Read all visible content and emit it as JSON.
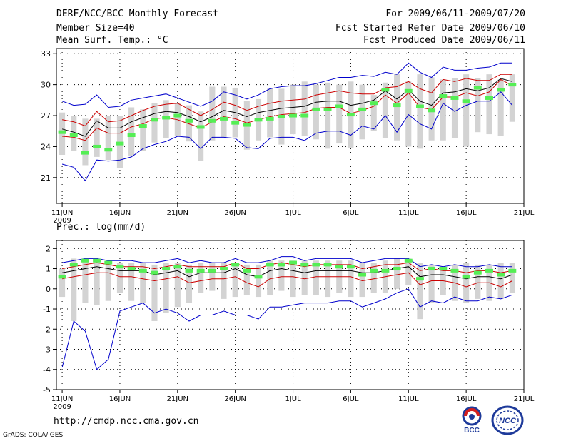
{
  "header": {
    "title": "DERF/NCC/BCC Monthly Forecast",
    "member_size": "Member Size=40",
    "variable_top": "Mean Surf. Temp.: °C",
    "period": "For 2009/06/11-2009/07/20",
    "fcst_started": "Fcst Started Refer Date 2009/06/10",
    "fcst_produced": "Fcst Produced Date 2009/06/11"
  },
  "footer": {
    "url": "http://cmdp.ncc.cma.gov.cn",
    "grads": "GrADS: COLA/IGES",
    "logo_left_text": "BCC",
    "logo_right_text": "NCC"
  },
  "colors": {
    "envelope": "#0000cc",
    "spread": "#cc0000",
    "mean": "#000000",
    "box": "#d3d3d3",
    "median": "#55ee55"
  },
  "chart_data": [
    {
      "type": "box-and-line ensemble",
      "title": "Mean Surf. Temp.: °C",
      "x": [
        1,
        2,
        3,
        4,
        5,
        6,
        7,
        8,
        9,
        10,
        11,
        12,
        13,
        14,
        15,
        16,
        17,
        18,
        19,
        20,
        21,
        22,
        23,
        24,
        25,
        26,
        27,
        28,
        29,
        30,
        31,
        32,
        33,
        34,
        35,
        36,
        37,
        38,
        39,
        40
      ],
      "xticks": [
        {
          "day": 1,
          "label": "11JUN",
          "sub": "2009"
        },
        {
          "day": 6,
          "label": "16JUN"
        },
        {
          "day": 11,
          "label": "21JUN"
        },
        {
          "day": 16,
          "label": "26JUN"
        },
        {
          "day": 21,
          "label": "1JUL"
        },
        {
          "day": 26,
          "label": "6JUL"
        },
        {
          "day": 31,
          "label": "11JUL"
        },
        {
          "day": 36,
          "label": "16JUL"
        },
        {
          "day": 41,
          "label": "21JUL"
        }
      ],
      "xlim": [
        0.5,
        41
      ],
      "ylim": [
        18.5,
        33.5
      ],
      "yticks": [
        21,
        24,
        27,
        30,
        33
      ],
      "series": [
        {
          "name": "max",
          "color": "#0000cc",
          "values": [
            28.4,
            28.0,
            28.1,
            29.0,
            27.8,
            27.9,
            28.5,
            28.7,
            28.9,
            29.1,
            28.7,
            28.3,
            27.9,
            28.4,
            29.3,
            29.0,
            28.6,
            29.0,
            29.6,
            29.8,
            29.9,
            29.9,
            30.1,
            30.4,
            30.7,
            30.7,
            30.9,
            30.8,
            31.2,
            31.0,
            32.1,
            31.2,
            30.7,
            31.7,
            31.4,
            31.4,
            31.6,
            31.7,
            32.1,
            32.1
          ]
        },
        {
          "name": "upper",
          "color": "#cc0000",
          "values": [
            26.6,
            26.4,
            26.0,
            27.4,
            26.4,
            26.5,
            27.0,
            27.5,
            27.9,
            28.1,
            28.2,
            27.6,
            27.0,
            27.6,
            28.3,
            28.0,
            27.5,
            27.9,
            28.2,
            28.4,
            28.5,
            28.6,
            29.0,
            29.2,
            29.4,
            29.2,
            29.1,
            29.1,
            29.7,
            29.8,
            30.3,
            29.6,
            29.2,
            30.5,
            30.3,
            30.6,
            30.4,
            30.4,
            31.0,
            31.0
          ]
        },
        {
          "name": "mean",
          "color": "#000000",
          "values": [
            25.7,
            25.4,
            25.0,
            26.5,
            25.8,
            25.8,
            26.4,
            26.8,
            27.2,
            27.4,
            27.3,
            26.9,
            26.4,
            26.9,
            27.5,
            27.3,
            26.9,
            27.3,
            27.5,
            27.7,
            27.8,
            27.9,
            28.3,
            28.4,
            28.4,
            28.0,
            28.2,
            28.5,
            29.4,
            28.6,
            29.5,
            28.4,
            28.0,
            29.2,
            29.3,
            29.6,
            29.4,
            29.7,
            30.6,
            30.3
          ]
        },
        {
          "name": "lower",
          "color": "#cc0000",
          "values": [
            25.0,
            24.9,
            24.6,
            25.8,
            25.3,
            25.3,
            25.9,
            26.2,
            26.7,
            26.8,
            26.6,
            26.2,
            25.8,
            26.4,
            26.9,
            26.7,
            26.3,
            26.6,
            26.9,
            27.1,
            27.2,
            27.3,
            27.7,
            27.8,
            27.8,
            27.2,
            27.5,
            27.9,
            29.0,
            28.2,
            29.2,
            27.8,
            27.6,
            28.8,
            28.8,
            29.2,
            28.9,
            29.3,
            30.5,
            29.9
          ]
        },
        {
          "name": "min",
          "color": "#0000cc",
          "values": [
            22.3,
            22.0,
            20.7,
            22.7,
            22.6,
            22.7,
            23.0,
            23.8,
            24.2,
            24.5,
            25.0,
            24.9,
            23.8,
            24.9,
            24.9,
            24.8,
            23.9,
            23.8,
            24.8,
            24.9,
            24.9,
            24.6,
            25.3,
            25.5,
            25.5,
            25.1,
            26.0,
            25.7,
            27.0,
            25.4,
            27.1,
            26.2,
            25.7,
            28.2,
            27.4,
            28.0,
            28.4,
            28.4,
            29.3,
            28.0
          ]
        }
      ],
      "boxes": {
        "low": [
          23.2,
          23.6,
          22.2,
          23.0,
          22.7,
          21.9,
          23.1,
          23.6,
          24.4,
          24.8,
          25.0,
          24.5,
          22.6,
          24.6,
          24.9,
          24.9,
          23.7,
          24.6,
          24.9,
          24.2,
          25.2,
          25.0,
          24.7,
          23.8,
          24.3,
          23.9,
          24.7,
          25.5,
          24.8,
          24.6,
          24.0,
          23.8,
          24.6,
          24.6,
          24.8,
          24.0,
          25.4,
          25.2,
          25.0,
          26.4
        ],
        "high": [
          27.3,
          27.0,
          26.7,
          26.7,
          27.0,
          27.0,
          27.8,
          27.6,
          28.2,
          28.5,
          28.2,
          28.0,
          27.4,
          29.8,
          29.8,
          29.7,
          28.4,
          28.6,
          29.6,
          29.6,
          30.0,
          30.3,
          30.0,
          30.2,
          30.0,
          30.3,
          30.0,
          29.0,
          30.2,
          31.0,
          30.3,
          31.0,
          30.7,
          30.5,
          30.6,
          31.0,
          30.6,
          31.0,
          30.5,
          31.0
        ],
        "median": [
          25.4,
          25.1,
          23.4,
          24.0,
          23.7,
          24.3,
          25.1,
          26.0,
          26.6,
          26.8,
          27.0,
          26.5,
          25.9,
          26.5,
          26.7,
          26.3,
          26.1,
          26.6,
          26.7,
          26.9,
          27.0,
          27.0,
          27.6,
          27.6,
          27.9,
          27.1,
          27.6,
          28.2,
          29.5,
          28.0,
          29.4,
          27.9,
          27.5,
          28.9,
          28.7,
          28.4,
          29.7,
          28.7,
          29.5,
          30.0
        ]
      }
    },
    {
      "type": "box-and-line ensemble",
      "title": "Prec.: log(mm/d)",
      "x": [
        1,
        2,
        3,
        4,
        5,
        6,
        7,
        8,
        9,
        10,
        11,
        12,
        13,
        14,
        15,
        16,
        17,
        18,
        19,
        20,
        21,
        22,
        23,
        24,
        25,
        26,
        27,
        28,
        29,
        30,
        31,
        32,
        33,
        34,
        35,
        36,
        37,
        38,
        39,
        40
      ],
      "xticks": [
        {
          "day": 1,
          "label": "11JUN",
          "sub": "2009"
        },
        {
          "day": 6,
          "label": "16JUN"
        },
        {
          "day": 11,
          "label": "21JUN"
        },
        {
          "day": 16,
          "label": "26JUN"
        },
        {
          "day": 21,
          "label": "1JUL"
        },
        {
          "day": 26,
          "label": "6JUL"
        },
        {
          "day": 31,
          "label": "11JUL"
        },
        {
          "day": 36,
          "label": "16JUL"
        },
        {
          "day": 41,
          "label": "21JUL"
        }
      ],
      "xlim": [
        0.5,
        41
      ],
      "ylim": [
        -5,
        2.4
      ],
      "yticks": [
        -5,
        -4,
        -3,
        -2,
        -1,
        0,
        1,
        2
      ],
      "series": [
        {
          "name": "max",
          "color": "#0000cc",
          "values": [
            1.3,
            1.4,
            1.5,
            1.5,
            1.4,
            1.4,
            1.4,
            1.3,
            1.3,
            1.4,
            1.5,
            1.3,
            1.4,
            1.3,
            1.3,
            1.5,
            1.3,
            1.3,
            1.4,
            1.6,
            1.6,
            1.4,
            1.5,
            1.5,
            1.5,
            1.5,
            1.3,
            1.4,
            1.5,
            1.5,
            1.5,
            1.1,
            1.2,
            1.1,
            1.2,
            1.1,
            1.1,
            1.2,
            1.1,
            1.1
          ]
        },
        {
          "name": "upper",
          "color": "#cc0000",
          "values": [
            1.0,
            1.1,
            1.2,
            1.3,
            1.2,
            1.1,
            1.1,
            1.1,
            1.0,
            1.1,
            1.2,
            1.1,
            1.1,
            1.1,
            1.1,
            1.3,
            1.0,
            1.0,
            1.2,
            1.3,
            1.2,
            1.1,
            1.2,
            1.2,
            1.2,
            1.2,
            1.0,
            1.1,
            1.2,
            1.2,
            1.3,
            0.9,
            1.0,
            0.9,
            0.9,
            0.8,
            0.9,
            0.9,
            0.8,
            0.9
          ]
        },
        {
          "name": "mean",
          "color": "#000000",
          "values": [
            0.8,
            0.9,
            1.0,
            1.1,
            1.0,
            0.9,
            0.9,
            0.9,
            0.7,
            0.8,
            0.9,
            0.6,
            0.8,
            0.8,
            0.8,
            1.0,
            0.7,
            0.6,
            0.9,
            1.0,
            0.9,
            0.8,
            0.9,
            0.9,
            0.9,
            0.9,
            0.8,
            0.8,
            0.9,
            1.0,
            1.1,
            0.6,
            0.7,
            0.7,
            0.6,
            0.5,
            0.6,
            0.6,
            0.5,
            0.7
          ]
        },
        {
          "name": "lower",
          "color": "#cc0000",
          "values": [
            0.5,
            0.6,
            0.7,
            0.8,
            0.8,
            0.6,
            0.6,
            0.5,
            0.4,
            0.5,
            0.6,
            0.3,
            0.4,
            0.5,
            0.5,
            0.6,
            0.3,
            0.1,
            0.5,
            0.6,
            0.6,
            0.5,
            0.6,
            0.6,
            0.6,
            0.6,
            0.4,
            0.5,
            0.6,
            0.7,
            0.8,
            0.2,
            0.4,
            0.4,
            0.3,
            0.1,
            0.3,
            0.3,
            0.1,
            0.4
          ]
        },
        {
          "name": "min",
          "color": "#0000cc",
          "values": [
            -3.9,
            -1.6,
            -2.1,
            -4.0,
            -3.5,
            -1.1,
            -0.9,
            -0.7,
            -1.2,
            -1.0,
            -1.2,
            -1.6,
            -1.3,
            -1.3,
            -1.1,
            -1.3,
            -1.3,
            -1.5,
            -0.9,
            -0.9,
            -0.8,
            -0.7,
            -0.7,
            -0.7,
            -0.6,
            -0.6,
            -0.9,
            -0.7,
            -0.5,
            -0.2,
            0.0,
            -0.9,
            -0.6,
            -0.7,
            -0.4,
            -0.6,
            -0.6,
            -0.4,
            -0.5,
            -0.3
          ]
        },
        {
          "name": "mean_dup",
          "color": "#000000",
          "values": [
            0.8,
            0.9,
            1.0,
            1.1,
            1.0,
            0.9,
            0.9,
            0.9,
            0.7,
            0.8,
            0.9,
            0.6,
            0.8,
            0.8,
            0.8,
            1.0,
            0.7,
            0.6,
            0.9,
            1.0,
            0.9,
            0.8,
            0.9,
            0.9,
            0.9,
            0.9,
            0.8,
            0.8,
            0.9,
            1.0,
            1.1,
            0.6,
            0.7,
            0.7,
            0.6,
            0.5,
            0.6,
            0.6,
            0.5,
            0.7
          ]
        }
      ],
      "boxes": {
        "low": [
          -0.4,
          -1.6,
          -0.7,
          -0.8,
          -0.6,
          -0.2,
          -0.6,
          -0.7,
          -1.6,
          -1.2,
          -0.9,
          -0.7,
          -0.2,
          -0.1,
          -0.5,
          -0.4,
          -0.3,
          -0.4,
          -0.3,
          -0.1,
          -0.4,
          -0.3,
          -0.3,
          -0.4,
          -0.2,
          -0.4,
          -0.4,
          -0.2,
          -0.2,
          0.0,
          0.2,
          -1.5,
          -0.7,
          -0.3,
          -0.6,
          -0.7,
          -0.5,
          -0.6,
          -0.5,
          -0.2
        ],
        "high": [
          1.0,
          1.5,
          1.5,
          1.5,
          1.4,
          1.3,
          1.3,
          1.3,
          1.2,
          1.3,
          1.3,
          1.2,
          1.3,
          1.3,
          1.3,
          1.3,
          1.2,
          1.2,
          1.4,
          1.4,
          1.4,
          1.4,
          1.4,
          1.4,
          1.4,
          1.4,
          1.3,
          1.3,
          1.4,
          1.5,
          1.5,
          1.3,
          1.2,
          1.1,
          1.2,
          1.3,
          1.2,
          1.2,
          1.3,
          1.3
        ],
        "median": [
          0.6,
          1.2,
          1.4,
          1.4,
          1.3,
          1.1,
          1.0,
          0.9,
          0.8,
          1.0,
          1.1,
          0.9,
          0.9,
          0.9,
          1.0,
          1.2,
          0.9,
          0.6,
          1.2,
          1.2,
          1.3,
          1.2,
          1.2,
          1.2,
          1.1,
          1.1,
          0.7,
          0.9,
          0.9,
          1.0,
          1.4,
          0.5,
          1.0,
          1.0,
          0.9,
          0.6,
          0.8,
          0.9,
          0.7,
          0.9
        ]
      }
    }
  ]
}
